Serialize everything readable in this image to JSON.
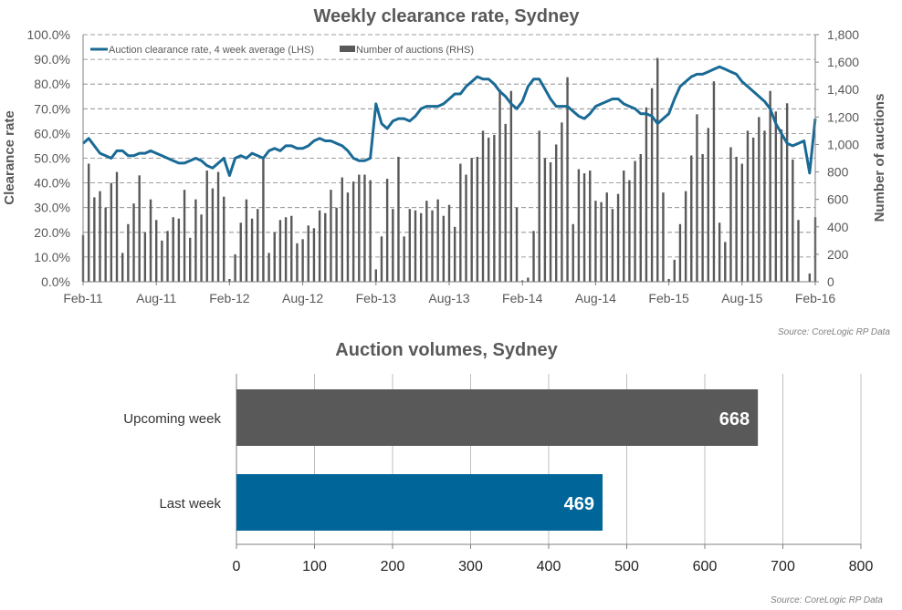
{
  "chart_data": [
    {
      "type": "bar+line",
      "title": "Weekly clearance rate, Sydney",
      "ylabel": "Clearance rate",
      "y2label": "Number of auctions",
      "ylim": [
        0,
        100
      ],
      "y2lim": [
        0,
        1800
      ],
      "yticks": [
        "0.0%",
        "10.0%",
        "20.0%",
        "30.0%",
        "40.0%",
        "50.0%",
        "60.0%",
        "70.0%",
        "80.0%",
        "90.0%",
        "100.0%"
      ],
      "y2ticks": [
        "0",
        "200",
        "400",
        "600",
        "800",
        "1,000",
        "1,200",
        "1,400",
        "1,600",
        "1,800"
      ],
      "xticks": [
        "Feb-11",
        "Aug-11",
        "Feb-12",
        "Aug-12",
        "Feb-13",
        "Aug-13",
        "Feb-14",
        "Aug-14",
        "Feb-15",
        "Aug-15",
        "Feb-16"
      ],
      "x_note": "values sampled fortnightly from Feb-11 to Feb-16",
      "grid": true,
      "legend_position": "top-left",
      "source": "Source: CoreLogic  RP Data",
      "series": [
        {
          "name": "Auction clearance rate, 4 week average (LHS)",
          "type": "line",
          "color": "#1a6a96",
          "values": [
            56,
            58,
            55,
            52,
            51,
            50,
            53,
            53,
            51,
            51,
            52,
            52,
            53,
            52,
            51,
            50,
            49,
            48,
            48,
            49,
            50,
            49,
            47,
            46,
            48,
            50,
            43,
            50,
            51,
            50,
            52,
            51,
            50,
            53,
            54,
            53,
            55,
            55,
            54,
            54,
            55,
            57,
            58,
            57,
            57,
            56,
            55,
            53,
            50,
            49,
            49,
            50,
            72,
            64,
            62,
            65,
            66,
            66,
            65,
            67,
            70,
            71,
            71,
            71,
            72,
            74,
            76,
            76,
            79,
            81,
            83,
            82,
            82,
            80,
            77,
            75,
            72,
            70,
            73,
            79,
            82,
            82,
            78,
            74,
            71,
            71,
            71,
            69,
            67,
            66,
            68,
            71,
            72,
            73,
            74,
            74,
            72,
            71,
            70,
            68,
            68,
            67,
            64,
            66,
            68,
            74,
            79,
            81,
            83,
            84,
            84,
            85,
            86,
            87,
            86,
            85,
            84,
            81,
            79,
            77,
            75,
            73,
            70,
            64,
            60,
            56,
            55,
            56,
            57,
            44,
            66
          ]
        },
        {
          "name": "Number of auctions (RHS)",
          "type": "bar",
          "color": "#595959",
          "values": [
            340,
            860,
            615,
            660,
            540,
            720,
            800,
            210,
            420,
            570,
            775,
            360,
            600,
            450,
            300,
            370,
            470,
            460,
            670,
            320,
            600,
            490,
            810,
            680,
            800,
            620,
            20,
            200,
            430,
            600,
            460,
            530,
            900,
            210,
            360,
            450,
            470,
            480,
            280,
            310,
            410,
            390,
            520,
            500,
            670,
            540,
            760,
            650,
            730,
            780,
            780,
            740,
            90,
            330,
            750,
            530,
            910,
            330,
            530,
            520,
            500,
            590,
            520,
            600,
            480,
            560,
            400,
            860,
            780,
            900,
            910,
            1100,
            1050,
            1070,
            1400,
            1150,
            1390,
            540,
            10,
            30,
            370,
            1100,
            900,
            870,
            1000,
            1160,
            1490,
            420,
            820,
            790,
            810,
            590,
            580,
            650,
            530,
            640,
            810,
            740,
            880,
            930,
            1270,
            1410,
            1630,
            650,
            20,
            160,
            420,
            660,
            920,
            1220,
            930,
            1120,
            1460,
            430,
            290,
            980,
            910,
            860,
            1100,
            1050,
            1200,
            1100,
            1390,
            1240,
            1110,
            1300,
            890,
            450,
            0,
            60,
            470
          ]
        }
      ]
    },
    {
      "type": "bar",
      "orientation": "horizontal",
      "title": "Auction volumes, Sydney",
      "categories": [
        "Upcoming week",
        "Last week"
      ],
      "values": [
        668,
        469
      ],
      "colors": [
        "#595959",
        "#006699"
      ],
      "xlim": [
        0,
        800
      ],
      "xticks": [
        "0",
        "100",
        "200",
        "300",
        "400",
        "500",
        "600",
        "700",
        "800"
      ],
      "grid": true,
      "source": "Source: CoreLogic  RP Data"
    }
  ]
}
